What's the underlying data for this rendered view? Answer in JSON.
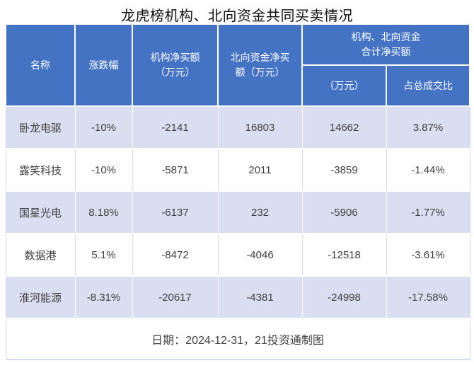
{
  "title": "龙虎榜机构、北向资金共同买卖情况",
  "headers": {
    "name": "名称",
    "change": "涨跌幅",
    "inst_net_buy": "机构净买额\n（万元）",
    "north_net_buy": "北向资金净买\n额（万元）",
    "combined_group": "机构、北向资金\n合计净买额",
    "combined_amount": "（万元）",
    "combined_ratio": "占总成交比"
  },
  "footer": "日期：2024-12-31，21投资通制图",
  "colors": {
    "header_bg": "#4573C4",
    "header_text": "#FFFFFF",
    "stripe_bg": "#D9DEF0",
    "row_bg": "#FFFFFF",
    "border": "#D5DBEE",
    "body_text": "#404040",
    "title_text": "#111111"
  },
  "chart_data": {
    "type": "table",
    "title": "龙虎榜机构、北向资金共同买卖情况",
    "columns": [
      "名称",
      "涨跌幅",
      "机构净买额（万元）",
      "北向资金净买额（万元）",
      "机构、北向资金合计净买额（万元）",
      "机构、北向资金合计净买额占总成交比"
    ],
    "rows": [
      [
        "卧龙电驱",
        "-10%",
        -2141,
        16803,
        14662,
        "3.87%"
      ],
      [
        "露笑科技",
        "-10%",
        -5871,
        2011,
        -3859,
        "-1.44%"
      ],
      [
        "国星光电",
        "8.18%",
        -6137,
        232,
        -5906,
        "-1.77%"
      ],
      [
        "数据港",
        "5.1%",
        -8472,
        -4046,
        -12518,
        "-3.61%"
      ],
      [
        "淮河能源",
        "-8.31%",
        -20617,
        -4381,
        -24998,
        "-17.58%"
      ]
    ],
    "footnote": "日期：2024-12-31，21投资通制图"
  }
}
